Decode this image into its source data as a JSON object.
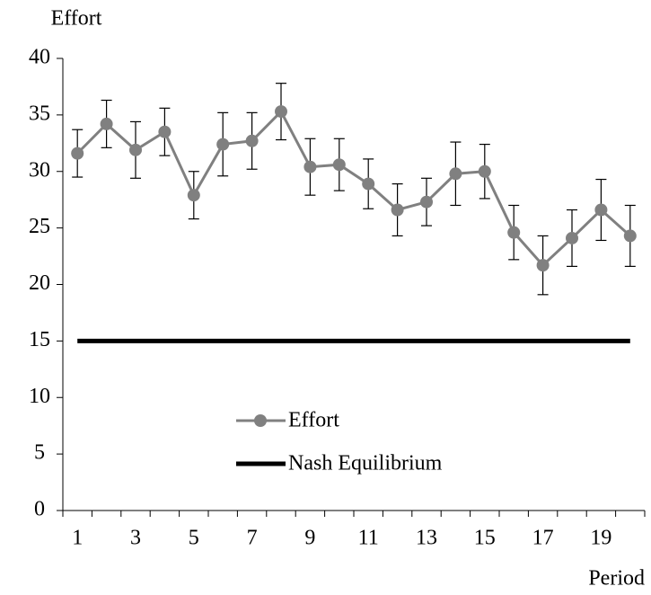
{
  "chart_data": {
    "type": "line",
    "y_label": "Effort",
    "x_label": "Period",
    "categories": [
      "1",
      null,
      "3",
      null,
      "5",
      null,
      "7",
      null,
      "9",
      null,
      "11",
      null,
      "13",
      null,
      "15",
      null,
      "17",
      null,
      "19",
      null
    ],
    "series": [
      {
        "name": "Effort",
        "color": "#808080",
        "marker": "circle",
        "values": [
          31.6,
          34.2,
          31.9,
          33.5,
          27.9,
          32.4,
          32.7,
          35.3,
          30.4,
          30.6,
          28.9,
          26.6,
          27.3,
          29.8,
          30.0,
          24.6,
          21.7,
          24.1,
          26.6,
          24.3
        ],
        "errors": [
          2.1,
          2.1,
          2.5,
          2.1,
          2.1,
          2.8,
          2.5,
          2.5,
          2.5,
          2.3,
          2.2,
          2.3,
          2.1,
          2.8,
          2.4,
          2.4,
          2.6,
          2.5,
          2.7,
          2.7
        ]
      },
      {
        "name": "Nash Equilibrium",
        "color": "#000000",
        "values": [
          15,
          15,
          15,
          15,
          15,
          15,
          15,
          15,
          15,
          15,
          15,
          15,
          15,
          15,
          15,
          15,
          15,
          15,
          15,
          15
        ]
      }
    ],
    "ylim": [
      0,
      40
    ],
    "yticks": [
      0,
      5,
      10,
      15,
      20,
      25,
      30,
      35,
      40
    ],
    "grid": false
  }
}
